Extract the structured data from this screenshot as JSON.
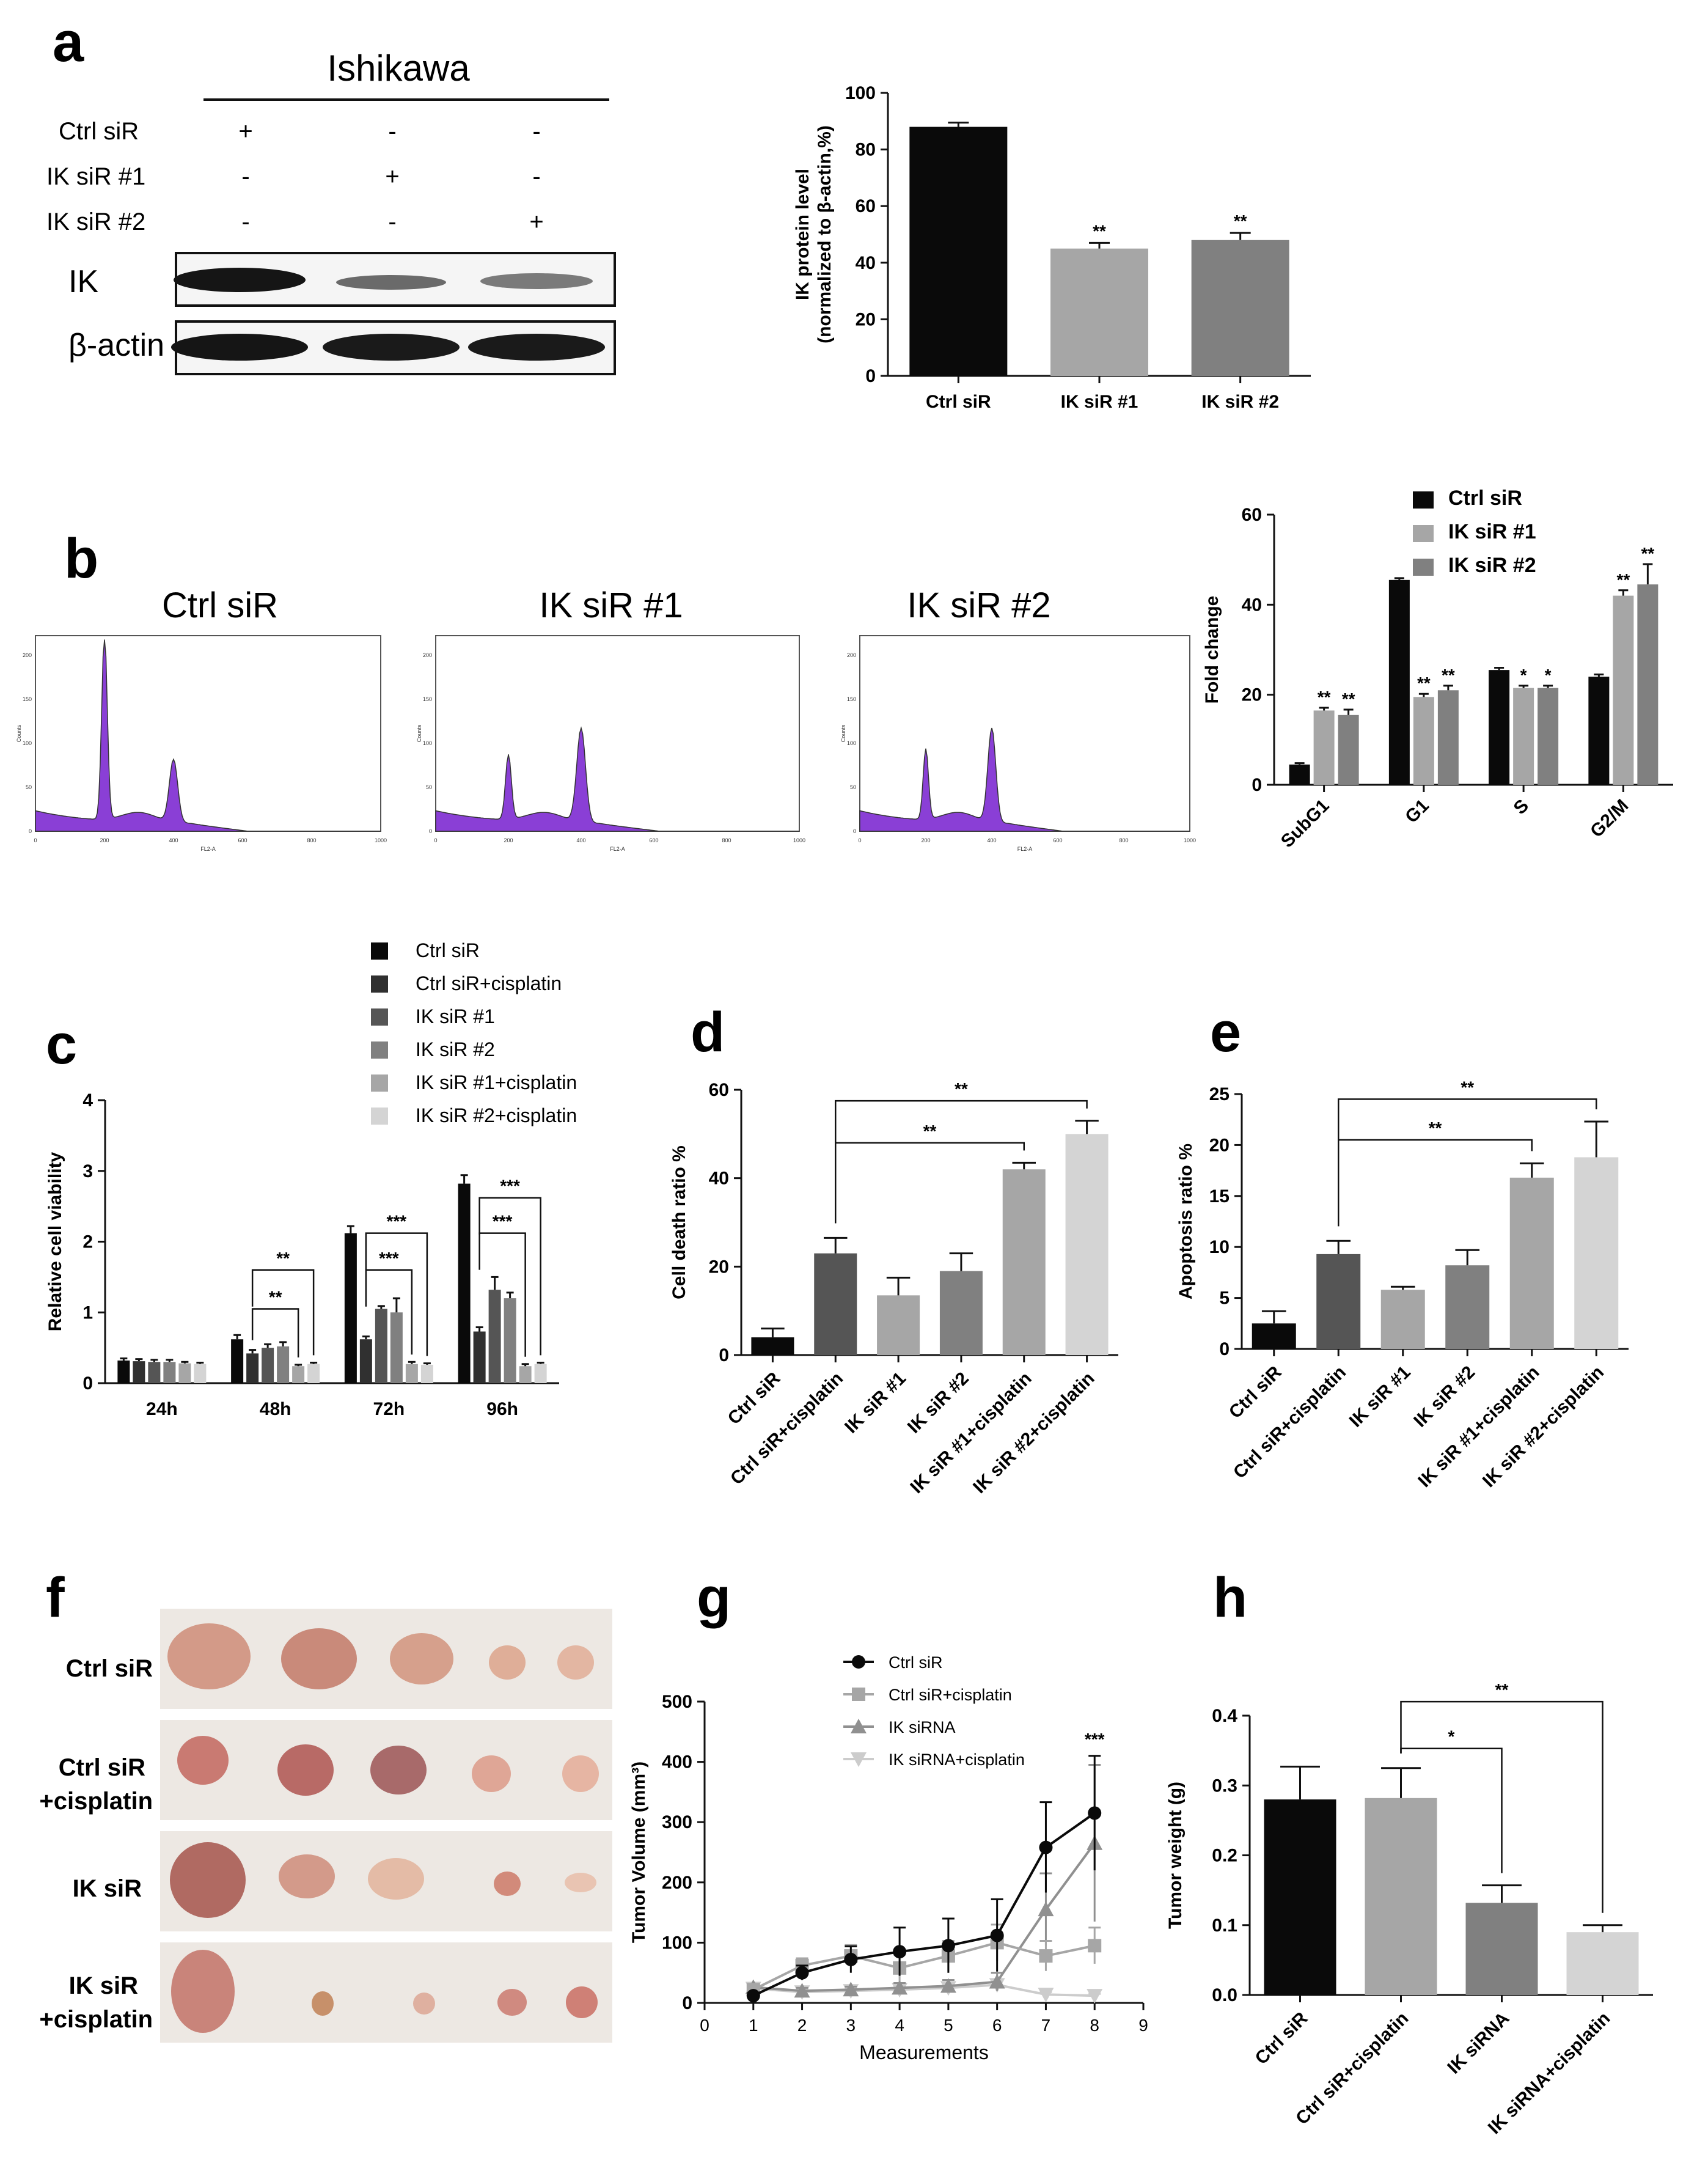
{
  "panel_letters": [
    "a",
    "b",
    "c",
    "d",
    "e",
    "f",
    "g",
    "h"
  ],
  "colors": {
    "black": "#0a0a0a",
    "dark": "#303030",
    "dim": "#555555",
    "mid": "#808080",
    "light": "#a6a6a6",
    "pale": "#d4d4d4",
    "flow_fill": "#8a3fd6"
  },
  "panel_a": {
    "blot": {
      "cell_line": "Ishikawa",
      "conditions": [
        {
          "label": "Ctrl siR",
          "marks": [
            "+",
            "-",
            "-"
          ]
        },
        {
          "label": "IK siR #1",
          "marks": [
            "-",
            "+",
            "-"
          ]
        },
        {
          "label": "IK siR #2",
          "marks": [
            "-",
            "-",
            "+"
          ]
        }
      ],
      "band_labels": [
        "IK",
        "β-actin"
      ]
    }
  },
  "panel_b": {
    "flow_titles": [
      "Ctrl siR",
      "IK siR #1",
      "IK siR #2"
    ],
    "flow_axis": {
      "xlabel": "FL2-A",
      "ylabel": "Counts",
      "xticks": [
        "0",
        "200",
        "400",
        "600",
        "800",
        "1000"
      ],
      "yticks": [
        "0",
        "50",
        "100",
        "150",
        "200"
      ]
    }
  },
  "panel_f": {
    "rows": [
      {
        "label_lines": [
          "Ctrl siR"
        ]
      },
      {
        "label_lines": [
          "Ctrl siR",
          "+cisplatin"
        ]
      },
      {
        "label_lines": [
          "IK siR"
        ]
      },
      {
        "label_lines": [
          "IK siR",
          "+cisplatin"
        ]
      }
    ]
  },
  "chart_data": [
    {
      "id": "a",
      "type": "bar",
      "categories": [
        "Ctrl siR",
        "IK siR #1",
        "IK siR #2"
      ],
      "values": [
        88,
        45,
        48
      ],
      "errors": [
        1.5,
        2,
        2.5
      ],
      "colors": [
        "#0a0a0a",
        "#a6a6a6",
        "#808080"
      ],
      "stars": [
        "",
        "**",
        "**"
      ],
      "ylabel_lines": [
        "IK protein level",
        "(normalized to β-actin,%)"
      ],
      "ylim": [
        0,
        100
      ],
      "yticks": [
        0,
        20,
        40,
        60,
        80,
        100
      ]
    },
    {
      "id": "b",
      "type": "bar",
      "categories": [
        "SubG1",
        "G1",
        "S",
        "G2/M"
      ],
      "series": [
        {
          "name": "Ctrl siR",
          "values": [
            4.5,
            45.5,
            25.5,
            24
          ],
          "errors": [
            0.3,
            0.4,
            0.5,
            0.5
          ],
          "stars": [
            "",
            "",
            "",
            ""
          ],
          "color": "#0a0a0a"
        },
        {
          "name": "IK siR #1",
          "values": [
            16.5,
            19.5,
            21.5,
            42
          ],
          "errors": [
            0.6,
            0.7,
            0.5,
            1.2
          ],
          "stars": [
            "**",
            "**",
            "*",
            "**"
          ],
          "color": "#a6a6a6"
        },
        {
          "name": "IK siR #2",
          "values": [
            15.5,
            21,
            21.5,
            44.5
          ],
          "errors": [
            1.2,
            1.0,
            0.5,
            4.5
          ],
          "stars": [
            "**",
            "**",
            "*",
            "**"
          ],
          "color": "#808080"
        }
      ],
      "ylabel": "Fold change",
      "ylim": [
        0,
        60
      ],
      "yticks": [
        0,
        20,
        40,
        60
      ]
    },
    {
      "id": "c",
      "type": "bar",
      "categories": [
        "24h",
        "48h",
        "72h",
        "96h"
      ],
      "series": [
        {
          "name": "Ctrl siR",
          "values": [
            0.32,
            0.62,
            2.12,
            2.82
          ],
          "errors": [
            0.03,
            0.06,
            0.1,
            0.12
          ],
          "color": "#0a0a0a"
        },
        {
          "name": "Ctrl siR+cisplatin",
          "values": [
            0.31,
            0.42,
            0.62,
            0.73
          ],
          "errors": [
            0.03,
            0.05,
            0.04,
            0.06
          ],
          "color": "#303030"
        },
        {
          "name": "IK siR #1",
          "values": [
            0.3,
            0.5,
            1.05,
            1.32
          ],
          "errors": [
            0.03,
            0.05,
            0.04,
            0.18
          ],
          "color": "#555555"
        },
        {
          "name": "IK siR #2",
          "values": [
            0.3,
            0.52,
            1.0,
            1.2
          ],
          "errors": [
            0.03,
            0.06,
            0.2,
            0.08
          ],
          "color": "#808080"
        },
        {
          "name": "IK siR #1+cisplatin",
          "values": [
            0.28,
            0.24,
            0.27,
            0.24
          ],
          "errors": [
            0.02,
            0.02,
            0.03,
            0.03
          ],
          "color": "#a6a6a6"
        },
        {
          "name": "IK siR #2+cisplatin",
          "values": [
            0.27,
            0.27,
            0.26,
            0.27
          ],
          "errors": [
            0.02,
            0.02,
            0.02,
            0.02
          ],
          "color": "#d4d4d4"
        }
      ],
      "ylabel": "Relative cell viability",
      "ylim": [
        0,
        4
      ],
      "yticks": [
        0,
        1,
        2,
        3,
        4
      ],
      "brackets": [
        {
          "group": 1,
          "from": 1,
          "to": 4,
          "level": 1.05,
          "label": "**"
        },
        {
          "group": 1,
          "from": 1,
          "to": 5,
          "level": 1.6,
          "label": "**"
        },
        {
          "group": 2,
          "from": 1,
          "to": 4,
          "level": 1.6,
          "label": "***"
        },
        {
          "group": 2,
          "from": 1,
          "to": 5,
          "level": 2.12,
          "label": "***"
        },
        {
          "group": 3,
          "from": 1,
          "to": 4,
          "level": 2.12,
          "label": "***"
        },
        {
          "group": 3,
          "from": 1,
          "to": 5,
          "level": 2.62,
          "label": "***"
        }
      ]
    },
    {
      "id": "d",
      "type": "bar",
      "categories": [
        "Ctrl siR",
        "Ctrl siR+cisplatin",
        "IK siR #1",
        "IK siR #2",
        "IK siR #1+cisplatin",
        "IK siR #2+cisplatin"
      ],
      "values": [
        4,
        23,
        13.5,
        19,
        42,
        50
      ],
      "errors": [
        2,
        3.5,
        4,
        4,
        1.5,
        3
      ],
      "colors": [
        "#0a0a0a",
        "#555555",
        "#a6a6a6",
        "#808080",
        "#a6a6a6",
        "#d4d4d4"
      ],
      "ylabel": "Cell death ratio %",
      "ylim": [
        0,
        60
      ],
      "yticks": [
        0,
        20,
        40,
        60
      ],
      "brackets": [
        {
          "from": 1,
          "to": 4,
          "level": 48,
          "label": "**"
        },
        {
          "from": 1,
          "to": 5,
          "level": 57.5,
          "label": "**"
        }
      ]
    },
    {
      "id": "e",
      "type": "bar",
      "categories": [
        "Ctrl siR",
        "Ctrl siR+cisplatin",
        "IK siR #1",
        "IK siR #2",
        "IK siR #1+cisplatin",
        "IK siR #2+cisplatin"
      ],
      "values": [
        2.5,
        9.3,
        5.8,
        8.2,
        16.8,
        18.8
      ],
      "errors": [
        1.2,
        1.3,
        0.3,
        1.5,
        1.4,
        3.5
      ],
      "colors": [
        "#0a0a0a",
        "#555555",
        "#a6a6a6",
        "#808080",
        "#a6a6a6",
        "#d4d4d4"
      ],
      "ylabel": "Apoptosis ratio %",
      "ylim": [
        0,
        25
      ],
      "yticks": [
        0,
        5,
        10,
        15,
        20,
        25
      ],
      "brackets": [
        {
          "from": 1,
          "to": 4,
          "level": 20.5,
          "label": "**"
        },
        {
          "from": 1,
          "to": 5,
          "level": 24.5,
          "label": "**"
        }
      ]
    },
    {
      "id": "g",
      "type": "line",
      "x": [
        1,
        2,
        3,
        4,
        5,
        6,
        7,
        8
      ],
      "series": [
        {
          "name": "Ctrl siR",
          "values": [
            12,
            50,
            72,
            85,
            95,
            112,
            258,
            315
          ],
          "errors": [
            5,
            12,
            22,
            40,
            45,
            60,
            75,
            95
          ],
          "color": "#0a0a0a",
          "marker": "circle"
        },
        {
          "name": "Ctrl siR+cisplatin",
          "values": [
            22,
            62,
            78,
            58,
            78,
            100,
            78,
            95
          ],
          "errors": [
            6,
            12,
            18,
            22,
            25,
            30,
            25,
            30
          ],
          "color": "#a6a6a6",
          "marker": "square"
        },
        {
          "name": "IK siRNA",
          "values": [
            26,
            20,
            22,
            25,
            28,
            35,
            155,
            265
          ],
          "errors": [
            5,
            5,
            5,
            8,
            10,
            15,
            60,
            130
          ],
          "color": "#909090",
          "marker": "triangle-up"
        },
        {
          "name": "IK siRNA+cisplatin",
          "values": [
            24,
            18,
            20,
            22,
            25,
            30,
            14,
            12
          ],
          "errors": [
            4,
            4,
            4,
            5,
            6,
            8,
            4,
            3
          ],
          "color": "#cccccc",
          "marker": "triangle-down"
        }
      ],
      "annotation": {
        "x": 8,
        "label": "***"
      },
      "xlabel": "Measurements",
      "ylabel": "Tumor Volume (mm³)",
      "xlim": [
        0,
        9
      ],
      "ylim": [
        0,
        500
      ],
      "xticks": [
        0,
        1,
        2,
        3,
        4,
        5,
        6,
        7,
        8,
        9
      ],
      "yticks": [
        0,
        100,
        200,
        300,
        400,
        500
      ]
    },
    {
      "id": "h",
      "type": "bar",
      "categories": [
        "Ctrl siR",
        "Ctrl siR+cisplatin",
        "IK siRNA",
        "IK siRNA+cisplatin"
      ],
      "values": [
        0.28,
        0.282,
        0.132,
        0.09
      ],
      "errors": [
        0.047,
        0.043,
        0.025,
        0.01
      ],
      "colors": [
        "#0a0a0a",
        "#a6a6a6",
        "#808080",
        "#d4d4d4"
      ],
      "ylabel": "Tumor weight (g)",
      "ylim": [
        0,
        0.4
      ],
      "yticks": [
        0.0,
        0.1,
        0.2,
        0.3,
        0.4
      ],
      "brackets": [
        {
          "from": 1,
          "to": 2,
          "level": 0.353,
          "label": "*"
        },
        {
          "from": 1,
          "to": 3,
          "level": 0.42,
          "label": "**"
        }
      ]
    }
  ]
}
